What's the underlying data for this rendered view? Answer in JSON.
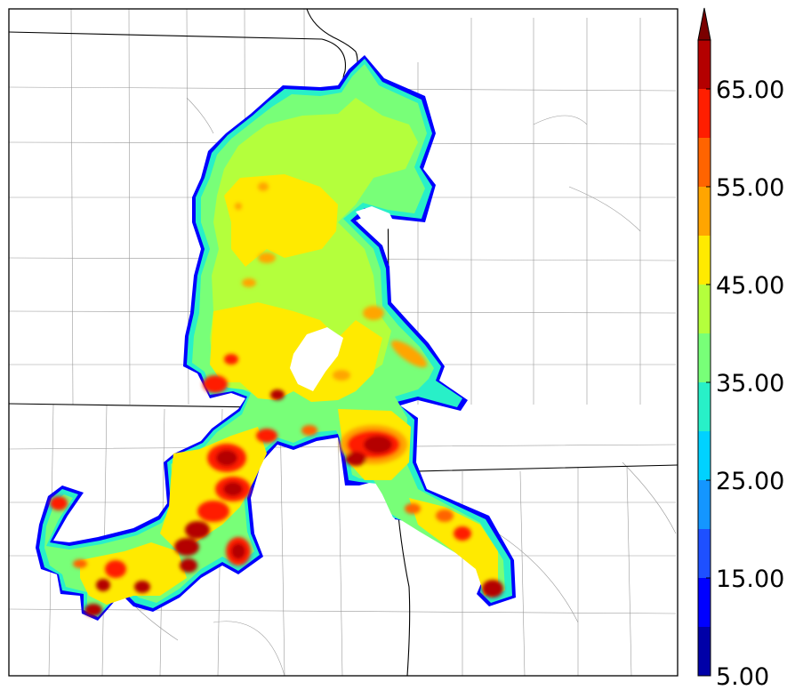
{
  "map": {
    "field": "reflectivity-style contour field",
    "palette_note": "jet-like colormap",
    "colorbar": {
      "levels": [
        5,
        10,
        15,
        20,
        25,
        30,
        35,
        40,
        45,
        50,
        55,
        60,
        65,
        70
      ],
      "colors": [
        "#0000a8",
        "#0000ff",
        "#1e50ff",
        "#1496ff",
        "#00d2ff",
        "#28f0c8",
        "#78ff78",
        "#b4ff3c",
        "#ffea00",
        "#ffa500",
        "#ff6400",
        "#ff1e00",
        "#b40000"
      ],
      "extend_color": "#7a0000",
      "tick_labels": [
        "5.00",
        "15.00",
        "25.00",
        "35.00",
        "45.00",
        "55.00",
        "65.00"
      ],
      "extend": "max"
    }
  }
}
